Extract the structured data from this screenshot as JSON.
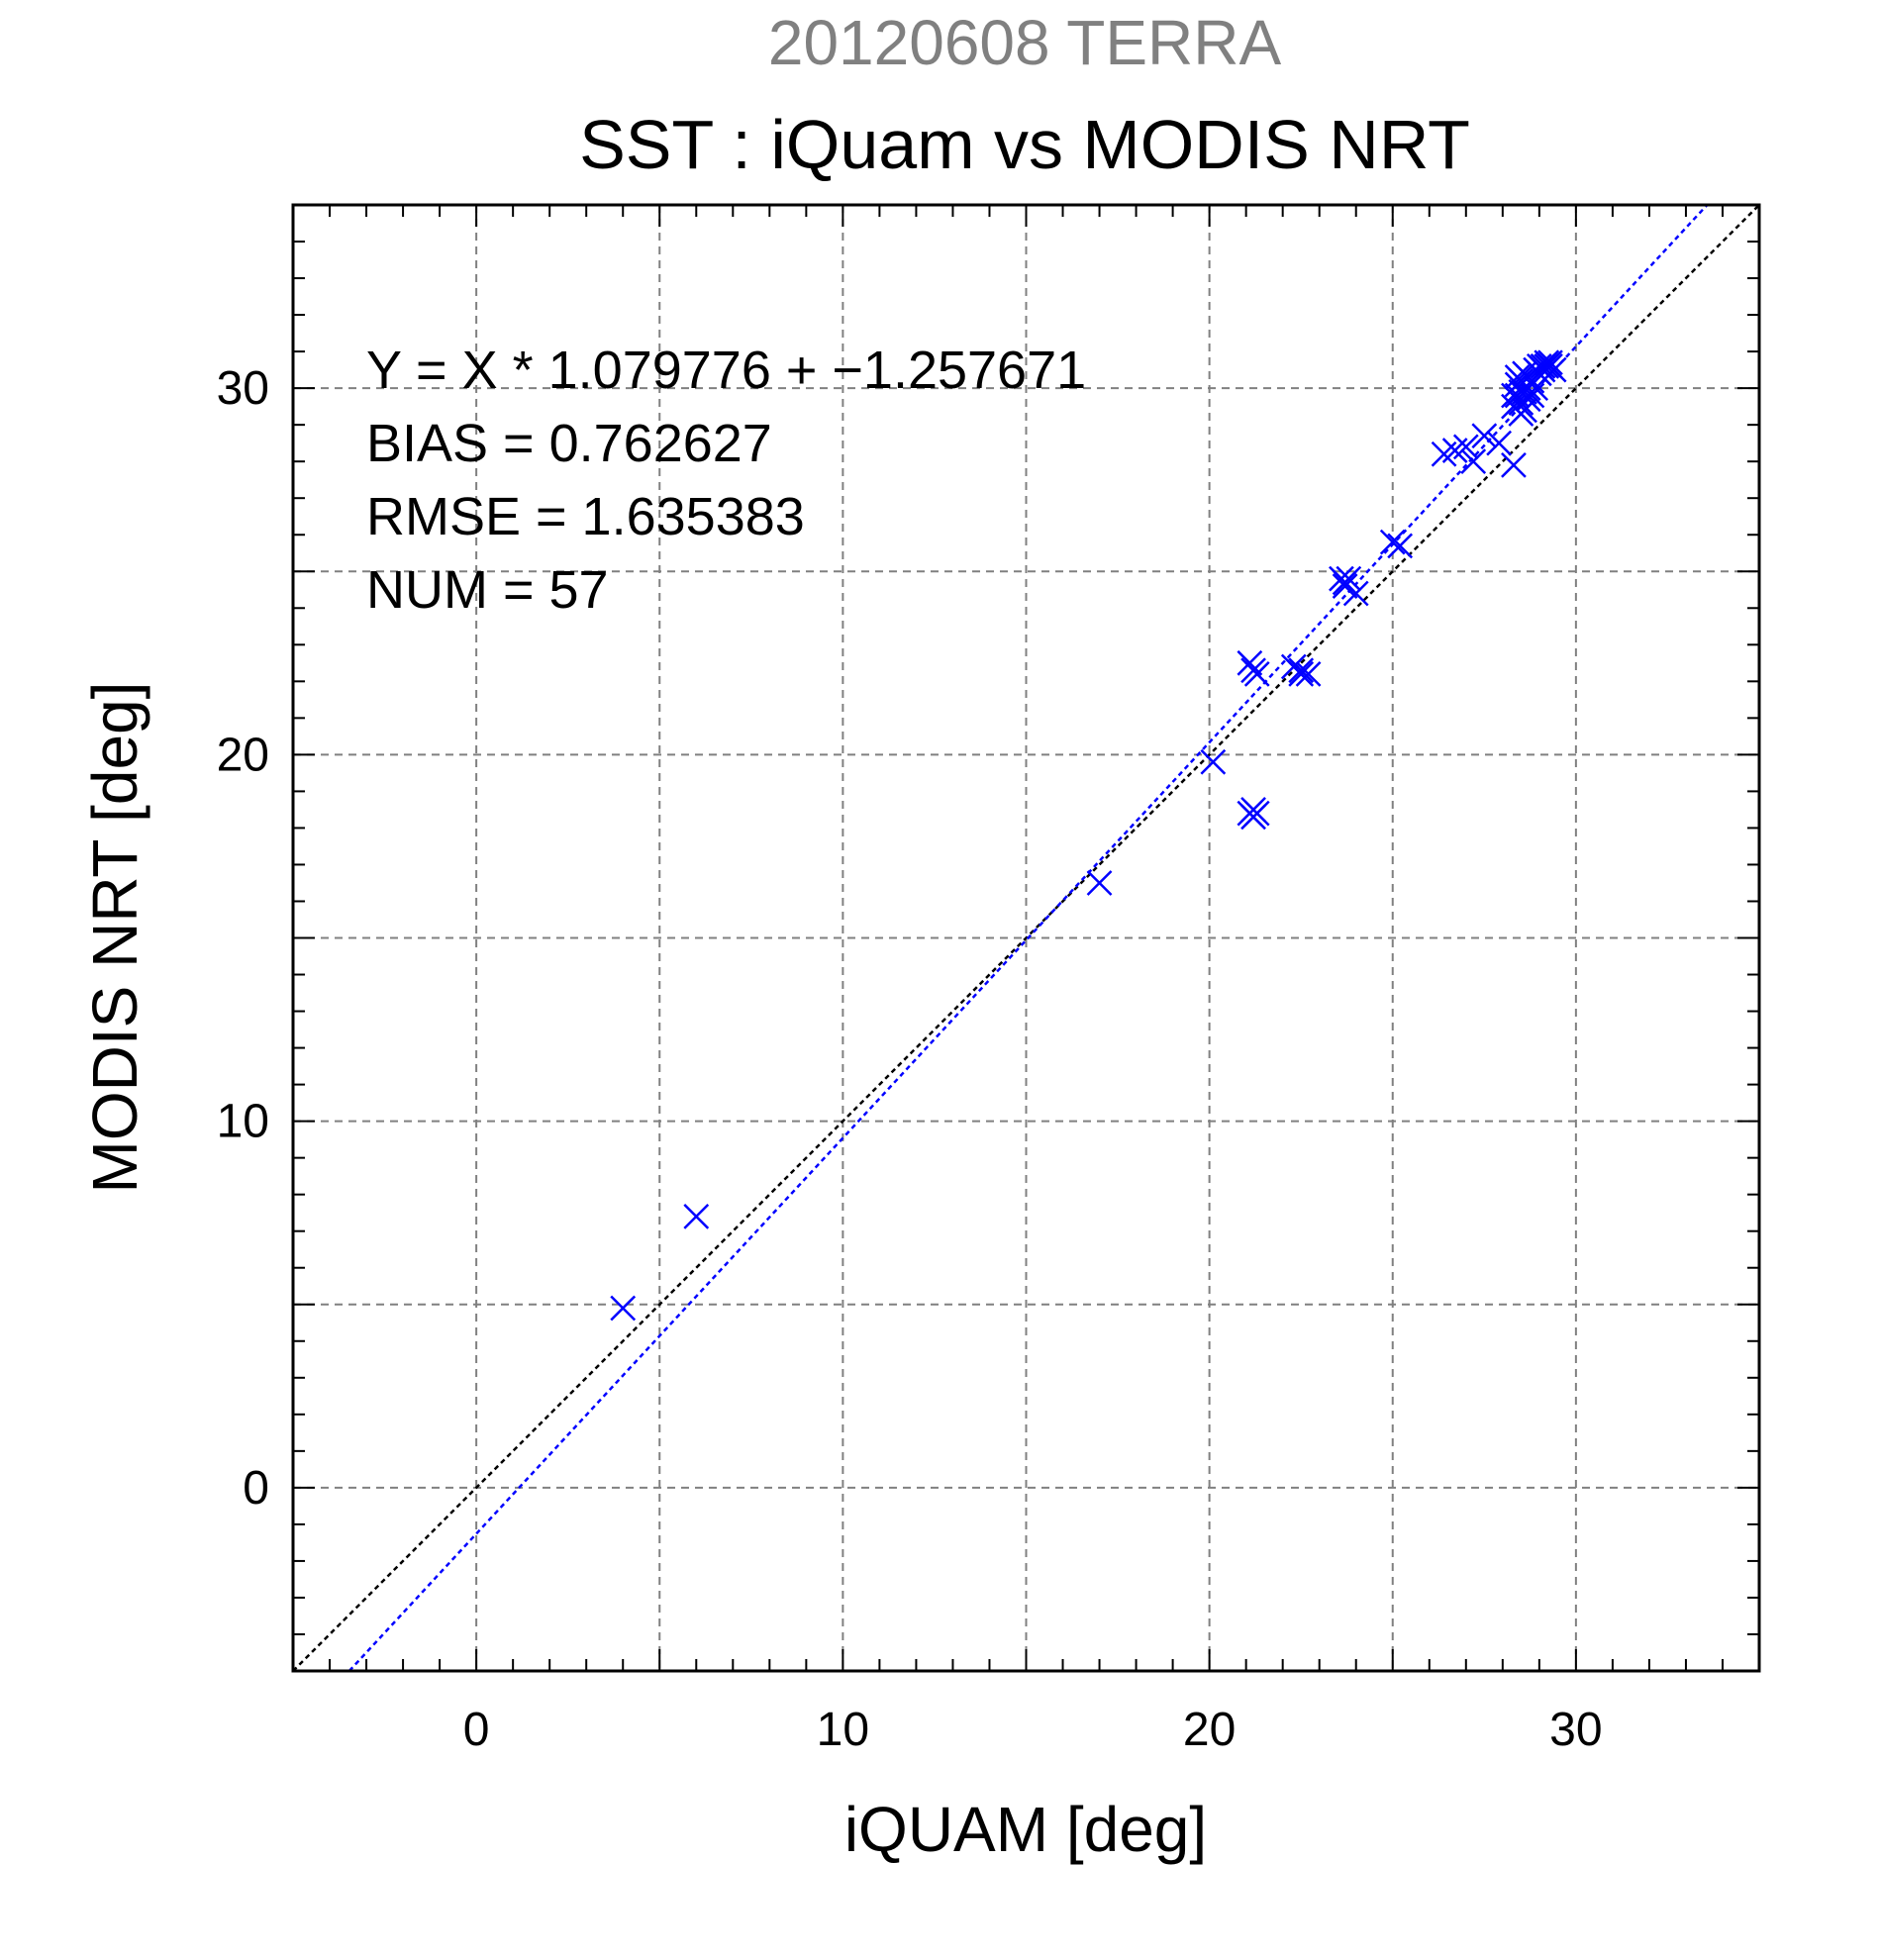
{
  "chart_data": {
    "type": "scatter",
    "title": "20120608 TERRA",
    "subtitle": "SST : iQuam vs MODIS NRT",
    "xlabel": "iQUAM [deg]",
    "ylabel": "MODIS NRT [deg]",
    "xlim": [
      -5,
      35
    ],
    "ylim": [
      -5,
      35
    ],
    "x_ticks": [
      0,
      10,
      20,
      30
    ],
    "y_ticks": [
      0,
      10,
      20,
      30
    ],
    "minor_tick_step": 1,
    "grid": true,
    "grid_step": 5,
    "annotations": [
      "Y = X * 1.079776 + −1.257671",
      "BIAS = 0.762627",
      "RMSE = 1.635383",
      "NUM = 57"
    ],
    "fit_line": {
      "slope": 1.079776,
      "intercept": -1.257671
    },
    "identity_line": {
      "slope": 1,
      "intercept": 0
    },
    "series": [
      {
        "marker": "x",
        "points": [
          [
            4.0,
            4.9
          ],
          [
            6.0,
            7.4
          ],
          [
            17.0,
            16.5
          ],
          [
            20.1,
            19.8
          ],
          [
            21.1,
            18.4
          ],
          [
            21.2,
            18.3
          ],
          [
            21.3,
            18.4
          ],
          [
            21.2,
            18.5
          ],
          [
            21.1,
            22.5
          ],
          [
            21.3,
            22.2
          ],
          [
            21.2,
            22.3
          ],
          [
            22.3,
            22.4
          ],
          [
            22.5,
            22.2
          ],
          [
            22.7,
            22.2
          ],
          [
            22.5,
            22.3
          ],
          [
            23.6,
            24.8
          ],
          [
            23.7,
            24.6
          ],
          [
            23.8,
            24.8
          ],
          [
            24.0,
            24.4
          ],
          [
            23.7,
            24.7
          ],
          [
            25.0,
            25.8
          ],
          [
            25.2,
            25.7
          ],
          [
            26.4,
            28.2
          ],
          [
            26.7,
            28.3
          ],
          [
            27.0,
            28.4
          ],
          [
            27.2,
            28.0
          ],
          [
            27.5,
            28.7
          ],
          [
            27.9,
            28.5
          ],
          [
            28.3,
            27.9
          ],
          [
            28.3,
            29.5
          ],
          [
            28.4,
            29.8
          ],
          [
            28.4,
            30.1
          ],
          [
            28.5,
            29.6
          ],
          [
            28.5,
            30.2
          ],
          [
            28.6,
            29.9
          ],
          [
            28.6,
            29.4
          ],
          [
            28.7,
            30.0
          ],
          [
            28.7,
            29.7
          ],
          [
            28.8,
            30.2
          ],
          [
            28.8,
            29.8
          ],
          [
            28.5,
            29.3
          ],
          [
            28.4,
            30.3
          ],
          [
            28.6,
            30.4
          ],
          [
            28.9,
            30.0
          ],
          [
            28.3,
            29.8
          ],
          [
            28.7,
            30.3
          ],
          [
            28.5,
            29.9
          ],
          [
            29.0,
            30.6
          ],
          [
            29.1,
            30.5
          ],
          [
            29.2,
            30.7
          ],
          [
            29.3,
            30.6
          ],
          [
            29.4,
            30.5
          ],
          [
            29.2,
            30.6
          ],
          [
            29.0,
            30.4
          ],
          [
            29.3,
            30.7
          ],
          [
            29.1,
            30.6
          ],
          [
            28.9,
            30.5
          ]
        ]
      }
    ]
  },
  "colors": {
    "title": "#808080",
    "text": "#000000",
    "marker": "#0000ff",
    "fit_line": "#0000ff",
    "identity_line": "#000000",
    "grid": "#808080",
    "frame": "#000000"
  }
}
